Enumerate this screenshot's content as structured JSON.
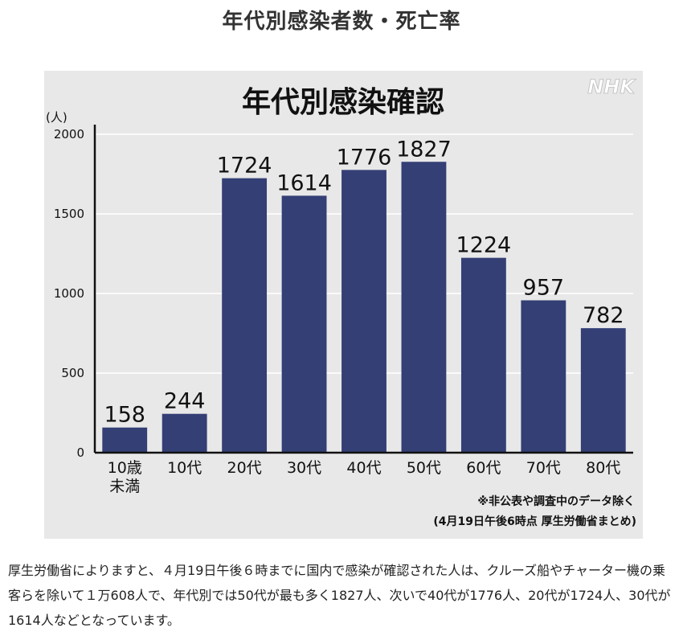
{
  "page": {
    "title": "年代別感染者数・死亡率",
    "caption": "厚生労働省によりますと、４月19日午後６時までに国内で感染が確認された人は、クルーズ船やチャーター機の乗客らを除いて１万608人で、年代別では50代が最も多く1827人、次いで40代が1776人、20代が1724人、30代が1614人などとなっています。"
  },
  "figure": {
    "brand": "NHK",
    "note1": "※非公表や調査中のデータ除く",
    "note2": "(4月19日午後6時点 厚生労働省まとめ)"
  },
  "colors": {
    "bar": "#333f75",
    "figure_background": "#e8e8e8",
    "grid": "#ffffff",
    "logo": "#ffffff"
  },
  "chart_data": {
    "type": "bar",
    "title": "年代別感染確認",
    "ylabel": "(人)",
    "xlabel": "",
    "categories": [
      "10歳\n未満",
      "10代",
      "20代",
      "30代",
      "40代",
      "50代",
      "60代",
      "70代",
      "80代"
    ],
    "values": [
      158,
      244,
      1724,
      1614,
      1776,
      1827,
      1224,
      957,
      782
    ],
    "value_labels": [
      "158",
      "244",
      "1724",
      "1614",
      "1776",
      "1827",
      "1224",
      "957",
      "782"
    ],
    "ylim": [
      0,
      2000
    ],
    "yticks": [
      0,
      500,
      1000,
      1500,
      2000
    ],
    "ytick_labels": [
      "0",
      "500",
      "1000",
      "1500",
      "2000"
    ],
    "grid": true,
    "legend": "none"
  }
}
